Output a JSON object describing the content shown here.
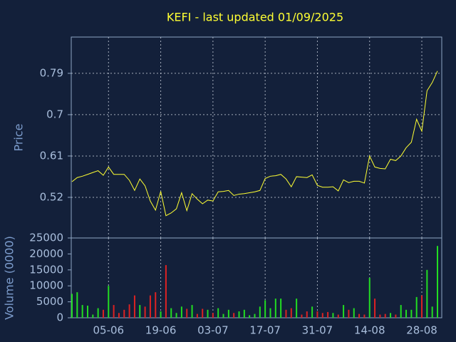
{
  "chart_data": [
    {
      "type": "line",
      "title": "KEFI - last updated 01/09/2025",
      "ylabel": "Price",
      "color": "#ffff33",
      "grid": true,
      "ylim": [
        0.4315,
        0.869
      ],
      "yticks": [
        0.52,
        0.61,
        0.7,
        0.79
      ],
      "categories": [
        null,
        null,
        null,
        null,
        null,
        null,
        null,
        "05-06",
        null,
        null,
        null,
        null,
        null,
        null,
        null,
        null,
        null,
        "19-06",
        null,
        null,
        null,
        null,
        null,
        null,
        null,
        null,
        null,
        "03-07",
        null,
        null,
        null,
        null,
        null,
        null,
        null,
        null,
        null,
        "17-07",
        null,
        null,
        null,
        null,
        null,
        null,
        null,
        null,
        null,
        "31-07",
        null,
        null,
        null,
        null,
        null,
        null,
        null,
        null,
        null,
        "14-08",
        null,
        null,
        null,
        null,
        null,
        null,
        null,
        null,
        null,
        "28-08",
        null,
        null,
        null
      ],
      "values": [
        0.554,
        0.563,
        0.566,
        0.57,
        0.574,
        0.578,
        0.568,
        0.586,
        0.57,
        0.57,
        0.57,
        0.557,
        0.535,
        0.56,
        0.545,
        0.512,
        0.492,
        0.533,
        0.48,
        0.486,
        0.495,
        0.53,
        0.491,
        0.528,
        0.516,
        0.506,
        0.514,
        0.512,
        0.532,
        0.533,
        0.535,
        0.524,
        0.527,
        0.528,
        0.53,
        0.532,
        0.535,
        0.561,
        0.566,
        0.567,
        0.57,
        0.56,
        0.543,
        0.565,
        0.564,
        0.563,
        0.569,
        0.546,
        0.542,
        0.542,
        0.543,
        0.534,
        0.558,
        0.552,
        0.555,
        0.555,
        0.551,
        0.61,
        0.586,
        0.583,
        0.582,
        0.603,
        0.6,
        0.61,
        0.628,
        0.64,
        0.69,
        0.664,
        0.752,
        0.77,
        0.795
      ]
    },
    {
      "type": "bar",
      "ylabel": "Volume (0000)",
      "grid": true,
      "ylim": [
        0,
        25000
      ],
      "yticks": [
        0,
        5000,
        10000,
        15000,
        20000,
        25000
      ],
      "values": [
        7500,
        8000,
        4000,
        3800,
        1000,
        3000,
        2500,
        10000,
        4000,
        1500,
        2500,
        4200,
        7000,
        4000,
        3500,
        7000,
        8000,
        2000,
        16500,
        3000,
        1500,
        3500,
        2800,
        4000,
        1200,
        2800,
        2500,
        1500,
        3000,
        1200,
        2500,
        1500,
        2000,
        2500,
        800,
        1200,
        3500,
        5500,
        3000,
        6000,
        6000,
        2500,
        3000,
        6000,
        1000,
        2000,
        3500,
        2000,
        1500,
        1800,
        1500,
        1000,
        4000,
        2500,
        3000,
        1200,
        1000,
        12500,
        6000,
        1000,
        1200,
        1500,
        1000,
        4000,
        2500,
        2500,
        6500,
        7000,
        15000,
        3500,
        22500
      ],
      "colors": [
        "#22dd22",
        "#22dd22",
        "#22dd22",
        "#22dd22",
        "#22dd22",
        "#22dd22",
        "#dd2222",
        "#22dd22",
        "#dd2222",
        "#dd2222",
        "#dd2222",
        "#dd2222",
        "#dd2222",
        "#22dd22",
        "#dd2222",
        "#dd2222",
        "#dd2222",
        "#22dd22",
        "#dd2222",
        "#22dd22",
        "#22dd22",
        "#22dd22",
        "#dd2222",
        "#22dd22",
        "#dd2222",
        "#dd2222",
        "#22dd22",
        "#dd2222",
        "#22dd22",
        "#22dd22",
        "#22dd22",
        "#dd2222",
        "#22dd22",
        "#22dd22",
        "#22dd22",
        "#22dd22",
        "#22dd22",
        "#22dd22",
        "#22dd22",
        "#22dd22",
        "#22dd22",
        "#dd2222",
        "#dd2222",
        "#22dd22",
        "#dd2222",
        "#dd2222",
        "#22dd22",
        "#dd2222",
        "#dd2222",
        "#dd2222",
        "#22dd22",
        "#dd2222",
        "#22dd22",
        "#dd2222",
        "#22dd22",
        "#dd2222",
        "#dd2222",
        "#22dd22",
        "#dd2222",
        "#dd2222",
        "#dd2222",
        "#22dd22",
        "#dd2222",
        "#22dd22",
        "#22dd22",
        "#22dd22",
        "#22dd22",
        "#dd2222",
        "#22dd22",
        "#22dd22",
        "#22dd22"
      ]
    }
  ]
}
